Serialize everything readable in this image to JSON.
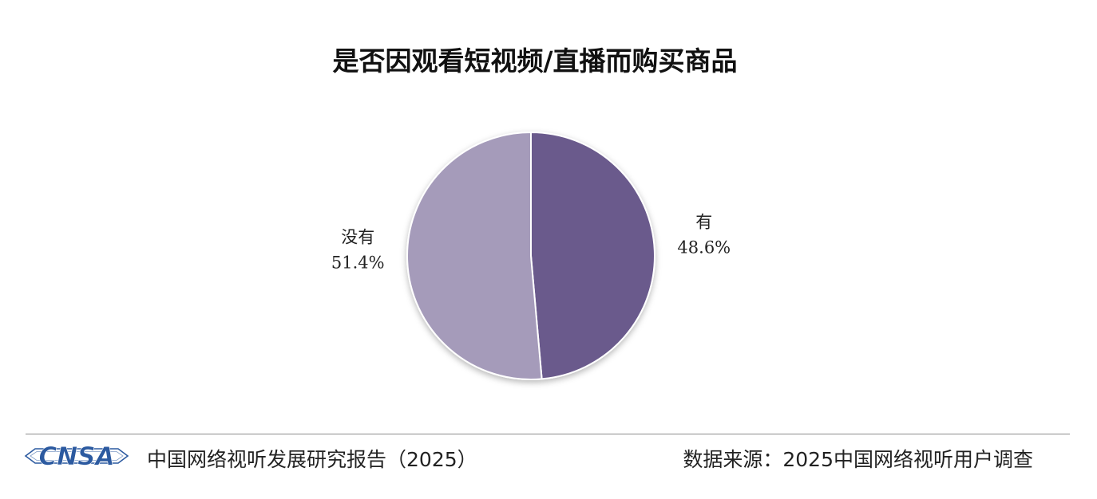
{
  "chart_data": {
    "type": "pie",
    "title": "是否因观看短视频/直播而购买商品",
    "slices": [
      {
        "label": "有",
        "value": 48.6,
        "display": "48.6%",
        "color": "#6b5a8c"
      },
      {
        "label": "没有",
        "value": 51.4,
        "display": "51.4%",
        "color": "#a59bba"
      }
    ],
    "legend": "none"
  },
  "footer": {
    "logo_text": "CNSA",
    "report_name": "中国网络视听发展研究报告（2025）",
    "source": "数据来源：2025中国网络视听用户调查"
  },
  "colors": {
    "logo_blue": "#2c5aa0",
    "divider": "#8a8a8a"
  }
}
